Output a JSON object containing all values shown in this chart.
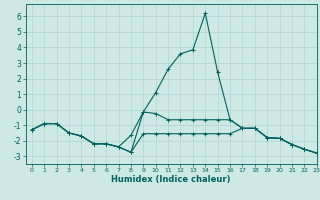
{
  "title": "",
  "xlabel": "Humidex (Indice chaleur)",
  "ylabel": "",
  "bg_color": "#cde8e5",
  "grid_color": "#afd4d0",
  "line_color": "#006060",
  "xlim": [
    -0.5,
    23
  ],
  "ylim": [
    -3.5,
    6.8
  ],
  "xticks": [
    0,
    1,
    2,
    3,
    4,
    5,
    6,
    7,
    8,
    9,
    10,
    11,
    12,
    13,
    14,
    15,
    16,
    17,
    18,
    19,
    20,
    21,
    22,
    23
  ],
  "yticks": [
    -3,
    -2,
    -1,
    0,
    1,
    2,
    3,
    4,
    5,
    6
  ],
  "lines": [
    {
      "x": [
        0,
        1,
        2,
        3,
        4,
        5,
        6,
        7,
        8,
        9,
        10,
        11,
        12,
        13,
        14,
        15,
        16,
        17,
        18,
        19,
        20,
        21,
        22,
        23
      ],
      "y": [
        -1.3,
        -0.9,
        -0.9,
        -1.5,
        -1.7,
        -2.2,
        -2.2,
        -2.4,
        -2.75,
        -0.15,
        1.1,
        2.6,
        3.6,
        3.85,
        6.2,
        2.4,
        -0.65,
        -1.2,
        -1.2,
        -1.8,
        -1.85,
        -2.25,
        -2.55,
        -2.8
      ]
    },
    {
      "x": [
        0,
        1,
        2,
        3,
        4,
        5,
        6,
        7,
        8,
        9,
        10,
        11,
        12,
        13,
        14,
        15,
        16,
        17,
        18,
        19,
        20,
        21,
        22,
        23
      ],
      "y": [
        -1.3,
        -0.9,
        -0.9,
        -1.5,
        -1.7,
        -2.2,
        -2.2,
        -2.4,
        -1.65,
        -0.15,
        -0.25,
        -0.65,
        -0.65,
        -0.65,
        -0.65,
        -0.65,
        -0.65,
        -1.2,
        -1.2,
        -1.8,
        -1.85,
        -2.25,
        -2.55,
        -2.8
      ]
    },
    {
      "x": [
        0,
        1,
        2,
        3,
        4,
        5,
        6,
        7,
        8,
        9,
        10,
        11,
        12,
        13,
        14,
        15,
        16,
        17,
        18,
        19,
        20,
        21,
        22,
        23
      ],
      "y": [
        -1.3,
        -0.9,
        -0.9,
        -1.5,
        -1.7,
        -2.2,
        -2.2,
        -2.4,
        -2.75,
        -1.55,
        -1.55,
        -1.55,
        -1.55,
        -1.55,
        -1.55,
        -1.55,
        -1.55,
        -1.2,
        -1.2,
        -1.8,
        -1.85,
        -2.25,
        -2.55,
        -2.8
      ]
    }
  ]
}
